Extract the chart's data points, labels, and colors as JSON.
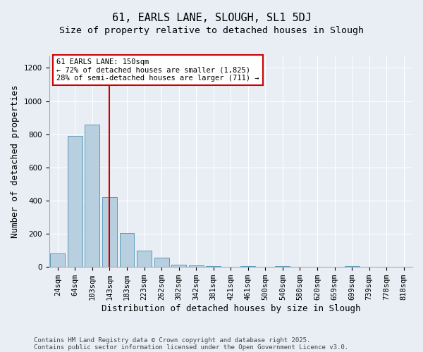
{
  "title_line1": "61, EARLS LANE, SLOUGH, SL1 5DJ",
  "title_line2": "Size of property relative to detached houses in Slough",
  "xlabel": "Distribution of detached houses by size in Slough",
  "ylabel": "Number of detached properties",
  "categories": [
    "24sqm",
    "64sqm",
    "103sqm",
    "143sqm",
    "183sqm",
    "223sqm",
    "262sqm",
    "302sqm",
    "342sqm",
    "381sqm",
    "421sqm",
    "461sqm",
    "500sqm",
    "540sqm",
    "580sqm",
    "620sqm",
    "659sqm",
    "699sqm",
    "739sqm",
    "778sqm",
    "818sqm"
  ],
  "values": [
    80,
    790,
    860,
    420,
    205,
    100,
    55,
    15,
    10,
    5,
    0,
    5,
    0,
    5,
    0,
    0,
    0,
    5,
    0,
    0,
    0
  ],
  "bar_color": "#b8cfe0",
  "bar_edge_color": "#5a9aba",
  "red_line_index": 3,
  "red_line_color": "#cc0000",
  "annotation_text": "61 EARLS LANE: 150sqm\n← 72% of detached houses are smaller (1,825)\n28% of semi-detached houses are larger (711) →",
  "annotation_box_facecolor": "#ffffff",
  "annotation_box_edgecolor": "#cc0000",
  "ylim": [
    0,
    1270
  ],
  "yticks": [
    0,
    200,
    400,
    600,
    800,
    1000,
    1200
  ],
  "footer_line1": "Contains HM Land Registry data © Crown copyright and database right 2025.",
  "footer_line2": "Contains public sector information licensed under the Open Government Licence v3.0.",
  "background_color": "#e8eef4",
  "grid_color": "#ffffff",
  "title_fontsize": 11,
  "subtitle_fontsize": 9.5,
  "axis_label_fontsize": 9,
  "tick_fontsize": 7.5,
  "annotation_fontsize": 7.5,
  "footer_fontsize": 6.5
}
